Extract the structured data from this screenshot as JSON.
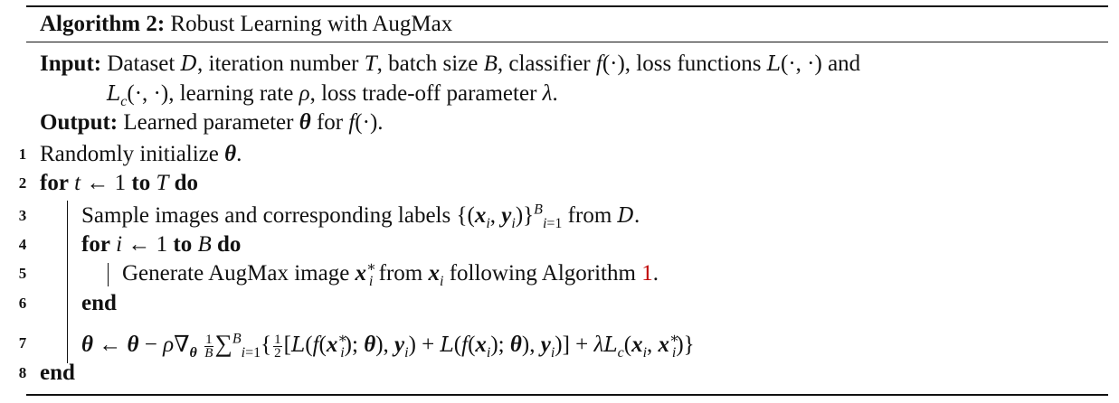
{
  "algorithm": {
    "heading_label": "Algorithm 2:",
    "heading_title": "Robust Learning with AugMax",
    "input_label": "Input:",
    "output_label": "Output:",
    "keywords": {
      "for": "for",
      "to": "to",
      "do": "do",
      "end": "end"
    },
    "line_numbers": [
      "1",
      "2",
      "3",
      "4",
      "5",
      "6",
      "7",
      "8"
    ],
    "algorithm_reference": "1"
  }
}
